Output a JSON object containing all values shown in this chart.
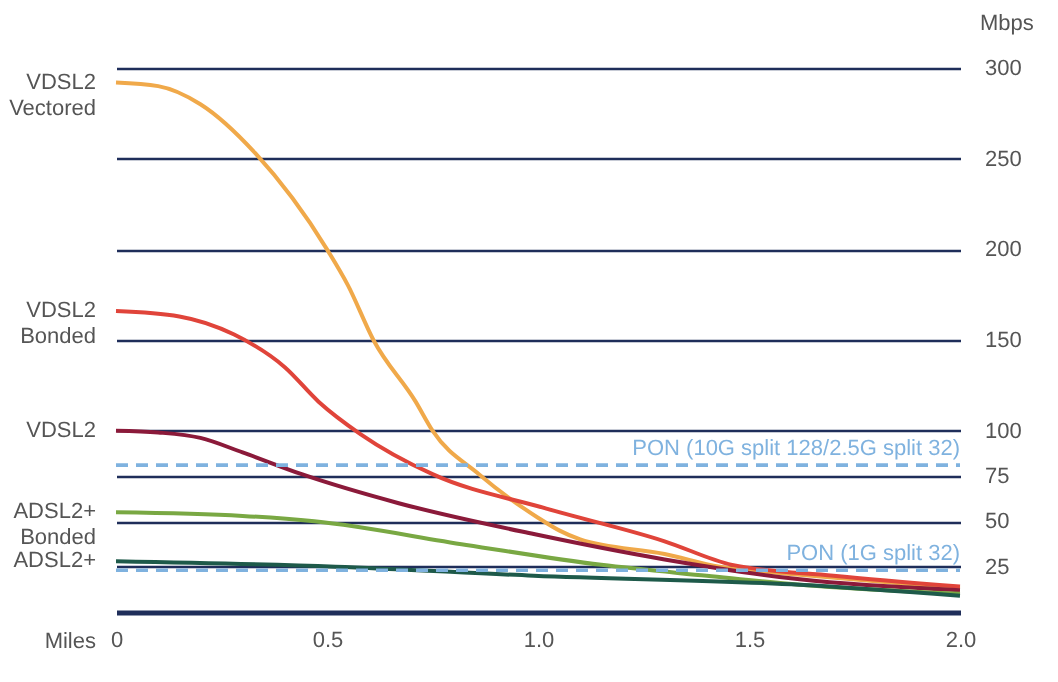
{
  "chart_data": {
    "type": "line",
    "xlabel": "Miles",
    "ylabel": "Mbps",
    "xlim": [
      0,
      2
    ],
    "xticks": [
      0,
      {
        "value": 0.5,
        "label": "0.5"
      },
      {
        "value": 1,
        "label": "1.0"
      },
      {
        "value": 1.5,
        "label": "1.5"
      },
      {
        "value": 2,
        "label": "2.0"
      }
    ],
    "ylim": [
      0,
      300
    ],
    "yticks": [
      25,
      50,
      75,
      100,
      150,
      200,
      250,
      300
    ],
    "grid": "y",
    "marker": "none",
    "line_style": "solid",
    "series": [
      {
        "name": "VDSL2 Vectored",
        "color": "#f0a94a",
        "x": [
          0,
          0.1,
          0.2,
          0.33,
          0.5,
          0.55,
          0.61,
          0.71,
          0.75,
          0.86,
          1.0,
          1.05,
          1.1,
          1.3,
          1.43,
          1.6,
          1.8,
          2.0
        ],
        "values": [
          292,
          290,
          280,
          253,
          200,
          180,
          150,
          116,
          100,
          76,
          52,
          45,
          40,
          32,
          25,
          21,
          17,
          13
        ]
      },
      {
        "name": "VDSL2 Bonded",
        "color": "#e0443a",
        "x": [
          0,
          0.15,
          0.28,
          0.4,
          0.48,
          0.58,
          0.75,
          1.02,
          1.3,
          1.46,
          1.7,
          2.0
        ],
        "values": [
          166,
          163,
          153,
          135,
          116,
          98,
          76,
          57,
          39,
          26,
          20,
          14
        ]
      },
      {
        "name": "VDSL2",
        "color": "#8b1a3a",
        "x": [
          0,
          0.1,
          0.2,
          0.3,
          0.44,
          0.67,
          0.99,
          1.3,
          1.62,
          2.0
        ],
        "values": [
          100,
          99,
          96,
          88,
          76,
          60,
          43,
          29,
          18,
          12
        ]
      },
      {
        "name": "ADSL2+ Bonded",
        "color": "#79a843",
        "x": [
          0,
          0.3,
          0.47,
          0.83,
          1.15,
          1.4,
          1.62,
          2.0
        ],
        "values": [
          55,
          53,
          50,
          37,
          26,
          20,
          15,
          10
        ]
      },
      {
        "name": "ADSL2+",
        "color": "#1e5a4a",
        "x": [
          0,
          0.52,
          0.99,
          1.62,
          2.0
        ],
        "values": [
          28,
          25,
          20,
          15,
          9
        ]
      }
    ],
    "ref_lines": [
      {
        "axis": "y",
        "value": 81,
        "label": "PON (10G split 128/2.5G split 32)",
        "color": "#7fb2df",
        "line_style": "dashed"
      },
      {
        "axis": "y",
        "value": 23,
        "label": "PON (1G split 32)",
        "color": "#7fb2df",
        "line_style": "dashed"
      }
    ]
  }
}
